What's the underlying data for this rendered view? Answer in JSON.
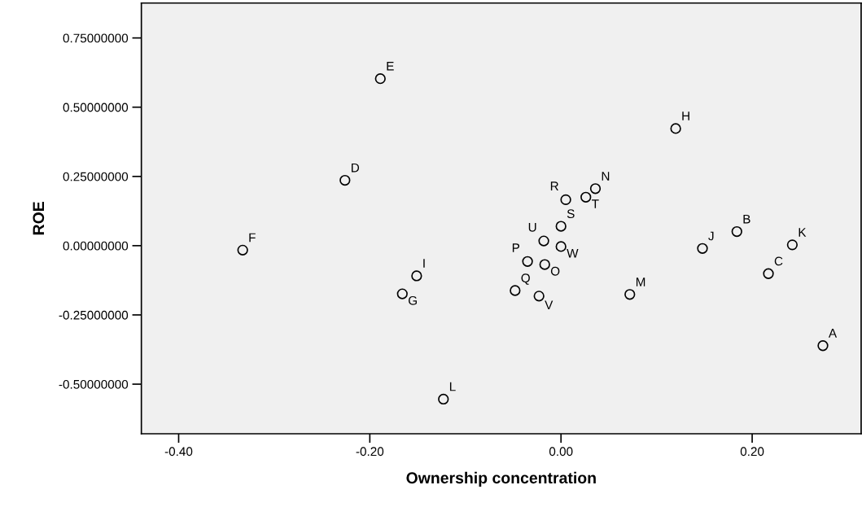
{
  "chart_data": {
    "type": "scatter",
    "xlabel": "Ownership concentration",
    "ylabel": "ROE",
    "x": [
      0.274,
      0.184,
      0.217,
      -0.226,
      -0.189,
      -0.333,
      -0.166,
      0.12,
      -0.151,
      0.148,
      0.242,
      -0.123,
      0.072,
      0.036,
      -0.017,
      -0.035,
      -0.048,
      0.005,
      0.0,
      0.026,
      -0.018,
      -0.023,
      0.0
    ],
    "values": [
      -0.361,
      0.051,
      -0.101,
      0.236,
      0.603,
      -0.016,
      -0.174,
      0.423,
      -0.109,
      -0.01,
      0.003,
      -0.554,
      -0.176,
      0.206,
      -0.068,
      -0.057,
      -0.162,
      0.166,
      0.07,
      0.175,
      0.017,
      -0.182,
      -0.003
    ],
    "color": "#000000",
    "marker": "circle",
    "grid": false,
    "legend": false,
    "annotations": [
      {
        "text": "A",
        "x": 0.274,
        "y": -0.361
      },
      {
        "text": "B",
        "x": 0.184,
        "y": 0.051
      },
      {
        "text": "C",
        "x": 0.217,
        "y": -0.101
      },
      {
        "text": "D",
        "x": -0.226,
        "y": 0.236
      },
      {
        "text": "E",
        "x": -0.189,
        "y": 0.603
      },
      {
        "text": "F",
        "x": -0.333,
        "y": -0.016
      },
      {
        "text": "G",
        "x": -0.166,
        "y": -0.174
      },
      {
        "text": "H",
        "x": 0.12,
        "y": 0.423
      },
      {
        "text": "I",
        "x": -0.151,
        "y": -0.109
      },
      {
        "text": "J",
        "x": 0.148,
        "y": -0.01
      },
      {
        "text": "K",
        "x": 0.242,
        "y": 0.003
      },
      {
        "text": "L",
        "x": -0.123,
        "y": -0.554
      },
      {
        "text": "M",
        "x": 0.072,
        "y": -0.176
      },
      {
        "text": "N",
        "x": 0.036,
        "y": 0.206
      },
      {
        "text": "O",
        "x": -0.017,
        "y": -0.068
      },
      {
        "text": "P",
        "x": -0.035,
        "y": -0.057
      },
      {
        "text": "Q",
        "x": -0.048,
        "y": -0.162
      },
      {
        "text": "R",
        "x": 0.005,
        "y": 0.166
      },
      {
        "text": "S",
        "x": 0.0,
        "y": 0.07
      },
      {
        "text": "T",
        "x": 0.026,
        "y": 0.175
      },
      {
        "text": "U",
        "x": -0.018,
        "y": 0.017
      },
      {
        "text": "V",
        "x": -0.023,
        "y": -0.182
      },
      {
        "text": "W",
        "x": 0.0,
        "y": -0.003
      }
    ],
    "xlim": [
      -0.439,
      0.314
    ],
    "ylim": [
      -0.679,
      0.876
    ],
    "xticks": [
      {
        "value": -0.4,
        "label": "-0.40"
      },
      {
        "value": -0.2,
        "label": "-0.20"
      },
      {
        "value": 0,
        "label": "0.00"
      },
      {
        "value": 0.2,
        "label": "0.20"
      }
    ],
    "yticks": [
      {
        "value": -0.5,
        "label": "-0.50000000"
      },
      {
        "value": -0.25,
        "label": "-0.25000000"
      },
      {
        "value": 0,
        "label": "0.00000000"
      },
      {
        "value": 0.25,
        "label": "0.25000000"
      },
      {
        "value": 0.5,
        "label": "0.50000000"
      },
      {
        "value": 0.75,
        "label": "0.75000000"
      }
    ]
  }
}
